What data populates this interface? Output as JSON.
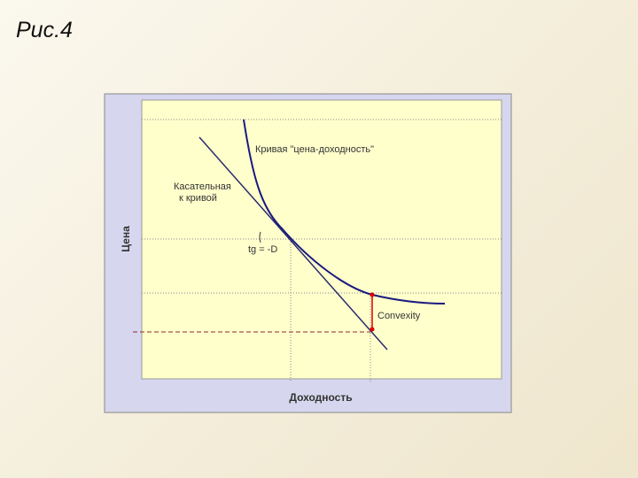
{
  "header": {
    "title": "Рис.4"
  },
  "diagram": {
    "y_axis_label": "Цена",
    "x_axis_label": "Доходность",
    "annotations": {
      "curve": "Кривая \"цена-доходность\"",
      "tangent_line1": "Касательная",
      "tangent_line2": "к кривой",
      "slope": "tg = -D",
      "convexity": "Convexity"
    }
  }
}
